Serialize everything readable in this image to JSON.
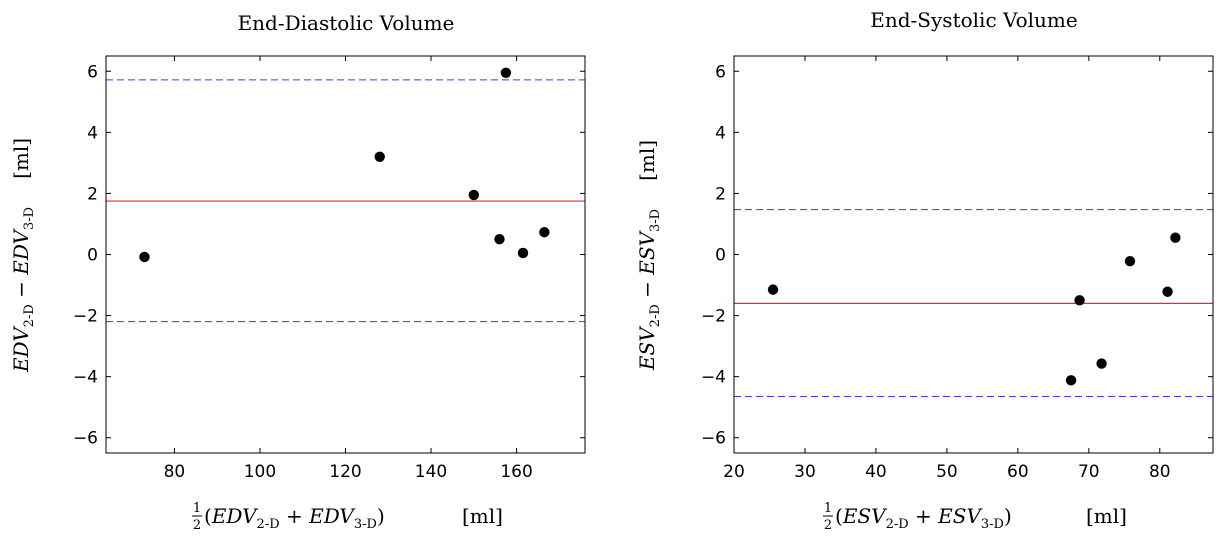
{
  "chart_data": [
    {
      "type": "scatter",
      "title": "End-Diastolic Volume",
      "xlabel": {
        "frac_num": "1",
        "frac_den": "2",
        "pre": "(",
        "a": "EDV",
        "a_sub": "2-D",
        "op": " + ",
        "b": "EDV",
        "b_sub": "3-D",
        "post": ")",
        "unit": "[ml]"
      },
      "ylabel": {
        "a": "EDV",
        "a_sub": "2-D",
        "op": " − ",
        "b": "EDV",
        "b_sub": "3-D",
        "unit": "[ml]"
      },
      "xlim": [
        64,
        176
      ],
      "ylim": [
        -6.5,
        6.5
      ],
      "xticks": [
        80,
        100,
        120,
        140,
        160
      ],
      "xtick_labels": [
        "80",
        "100",
        "120",
        "140",
        "160"
      ],
      "yticks": [
        -6,
        -4,
        -2,
        0,
        2,
        4,
        6
      ],
      "ytick_labels": [
        "−6",
        "−4",
        "−2",
        "0",
        "2",
        "4",
        "6"
      ],
      "points": [
        {
          "x": 73,
          "y": -0.08
        },
        {
          "x": 128,
          "y": 3.2
        },
        {
          "x": 150,
          "y": 1.95
        },
        {
          "x": 156,
          "y": 0.5
        },
        {
          "x": 157.5,
          "y": 5.95
        },
        {
          "x": 161.5,
          "y": 0.05
        },
        {
          "x": 166.5,
          "y": 0.73
        }
      ],
      "mean_line": 1.75,
      "limits": [
        5.72,
        -2.2
      ],
      "colors": {
        "mean": "#e8283c",
        "limits": "#3a3af0",
        "points": "#000000"
      }
    },
    {
      "type": "scatter",
      "title": "End-Systolic Volume",
      "xlabel": {
        "frac_num": "1",
        "frac_den": "2",
        "pre": "(",
        "a": "ESV",
        "a_sub": "2-D",
        "op": " + ",
        "b": "ESV",
        "b_sub": "3-D",
        "post": ")",
        "unit": "[ml]"
      },
      "ylabel": {
        "a": "ESV",
        "a_sub": "2-D",
        "op": " − ",
        "b": "ESV",
        "b_sub": "3-D",
        "unit": "[ml]"
      },
      "xlim": [
        20,
        87.5
      ],
      "ylim": [
        -6.5,
        6.5
      ],
      "xticks": [
        20,
        30,
        40,
        50,
        60,
        70,
        80
      ],
      "xtick_labels": [
        "20",
        "30",
        "40",
        "50",
        "60",
        "70",
        "80"
      ],
      "yticks": [
        -6,
        -4,
        -2,
        0,
        2,
        4,
        6
      ],
      "ytick_labels": [
        "−6",
        "−4",
        "−2",
        "0",
        "2",
        "4",
        "6"
      ],
      "points": [
        {
          "x": 25.5,
          "y": -1.15
        },
        {
          "x": 67.5,
          "y": -4.12
        },
        {
          "x": 68.7,
          "y": -1.5
        },
        {
          "x": 71.8,
          "y": -3.57
        },
        {
          "x": 75.8,
          "y": -0.22
        },
        {
          "x": 81.1,
          "y": -1.22
        },
        {
          "x": 82.2,
          "y": 0.55
        }
      ],
      "mean_line": -1.6,
      "limits": [
        1.47,
        -4.65
      ],
      "colors": {
        "mean": "#e8283c",
        "limits": "#3a3af0",
        "points": "#000000"
      }
    }
  ]
}
